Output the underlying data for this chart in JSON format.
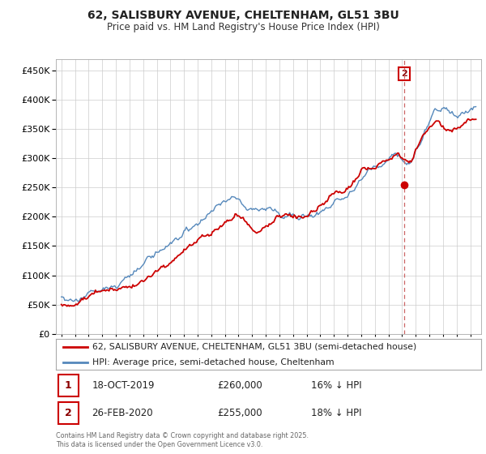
{
  "title": "62, SALISBURY AVENUE, CHELTENHAM, GL51 3BU",
  "subtitle": "Price paid vs. HM Land Registry's House Price Index (HPI)",
  "red_label": "62, SALISBURY AVENUE, CHELTENHAM, GL51 3BU (semi-detached house)",
  "blue_label": "HPI: Average price, semi-detached house, Cheltenham",
  "red_color": "#cc0000",
  "blue_color": "#5588bb",
  "dashed_line_color": "#cc6666",
  "footer": "Contains HM Land Registry data © Crown copyright and database right 2025.\nThis data is licensed under the Open Government Licence v3.0.",
  "ylim": [
    0,
    470000
  ],
  "yticks": [
    0,
    50000,
    100000,
    150000,
    200000,
    250000,
    300000,
    350000,
    400000,
    450000
  ],
  "xlim_start": 1994.6,
  "xlim_end": 2025.8,
  "background_color": "#ffffff",
  "grid_color": "#cccccc",
  "marker2_x": 2020.15,
  "marker2_y_red": 255000,
  "marker1_y_red": 260000
}
